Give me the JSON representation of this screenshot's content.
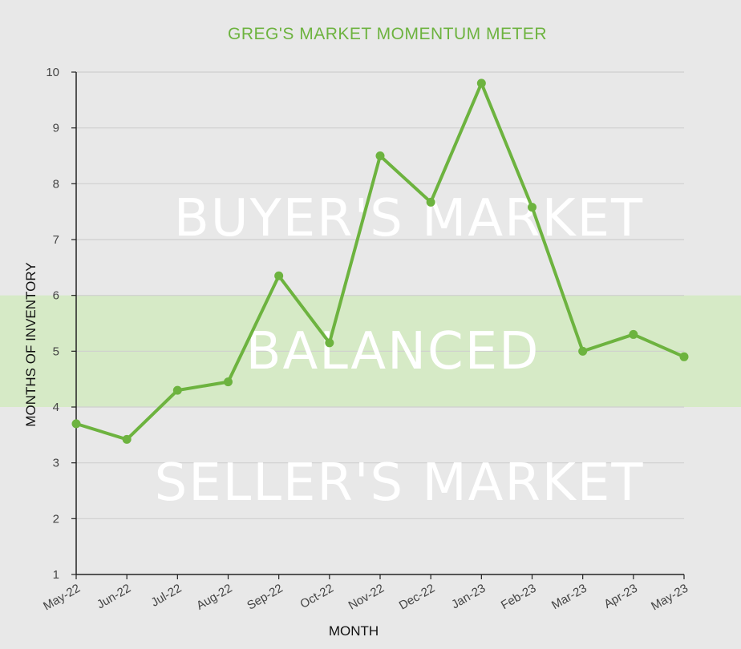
{
  "colors": {
    "background": "#e8e8e8",
    "line": "#6db33f",
    "balanced_band": "#d6eac6",
    "gridline": "#cfcfcf",
    "axis": "#222222"
  },
  "chart_data": {
    "type": "line",
    "title": "GREG'S MARKET MOMENTUM METER",
    "xlabel": "MONTH",
    "ylabel": "MONTHS OF INVENTORY",
    "ylim": [
      1,
      10
    ],
    "yticks": [
      "1",
      "2",
      "3",
      "4",
      "5",
      "6",
      "7",
      "8",
      "9",
      "10"
    ],
    "grid": true,
    "categories": [
      "May-22",
      "Jun-22",
      "Jul-22",
      "Aug-22",
      "Sep-22",
      "Oct-22",
      "Nov-22",
      "Dec-22",
      "Jan-23",
      "Feb-23",
      "Mar-23",
      "Apr-23",
      "May-23"
    ],
    "series": [
      {
        "values": [
          3.7,
          3.42,
          4.3,
          4.45,
          6.35,
          5.15,
          8.5,
          7.67,
          9.8,
          7.58,
          5.0,
          5.3,
          4.9
        ]
      }
    ],
    "zones": [
      {
        "label": "BUYER'S MARKET",
        "from": 6,
        "to": 10
      },
      {
        "label": "BALANCED",
        "from": 4,
        "to": 6
      },
      {
        "label": "SELLER'S MARKET",
        "from": 1,
        "to": 4
      }
    ]
  }
}
